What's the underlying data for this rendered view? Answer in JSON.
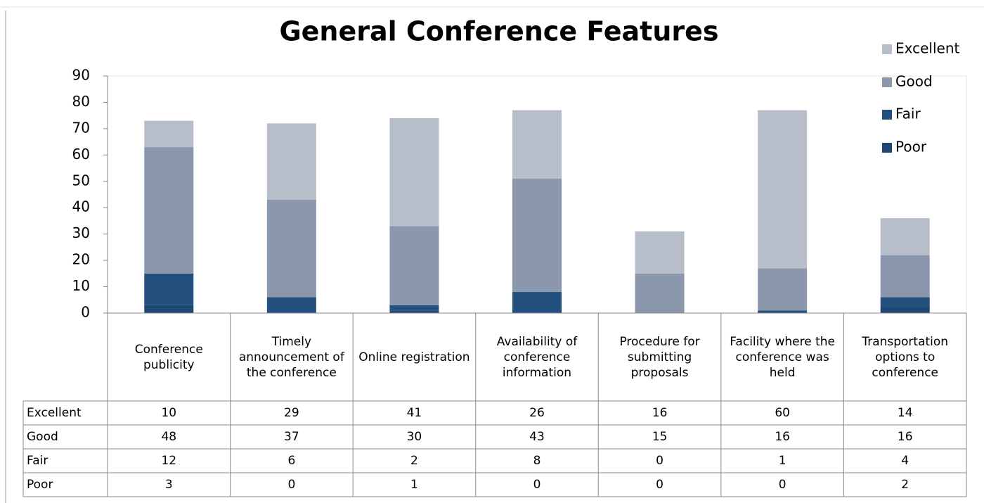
{
  "chart_data": {
    "type": "stacked_bar",
    "title": "General Conference Features",
    "categories": [
      "Conference publicity",
      "Timely announcement of the conference",
      "Online registration",
      "Availability of conference information",
      "Procedure for submitting proposals",
      "Facility where the conference was held",
      "Transportation options to conference"
    ],
    "series": [
      {
        "name": "Excellent",
        "color": "#b7bdc9",
        "values": [
          10,
          29,
          41,
          26,
          16,
          60,
          14
        ]
      },
      {
        "name": "Good",
        "color": "#8a97ad",
        "values": [
          48,
          37,
          30,
          43,
          15,
          16,
          16
        ]
      },
      {
        "name": "Fair",
        "color": "#24507f",
        "values": [
          12,
          6,
          2,
          8,
          0,
          1,
          4
        ]
      },
      {
        "name": "Poor",
        "color": "#1d4673",
        "values": [
          3,
          0,
          1,
          0,
          0,
          0,
          2
        ]
      }
    ],
    "ylim": [
      0,
      90
    ],
    "yticks": [
      0,
      10,
      20,
      30,
      40,
      50,
      60,
      70,
      80,
      90
    ],
    "grid": false,
    "legend": "right"
  }
}
